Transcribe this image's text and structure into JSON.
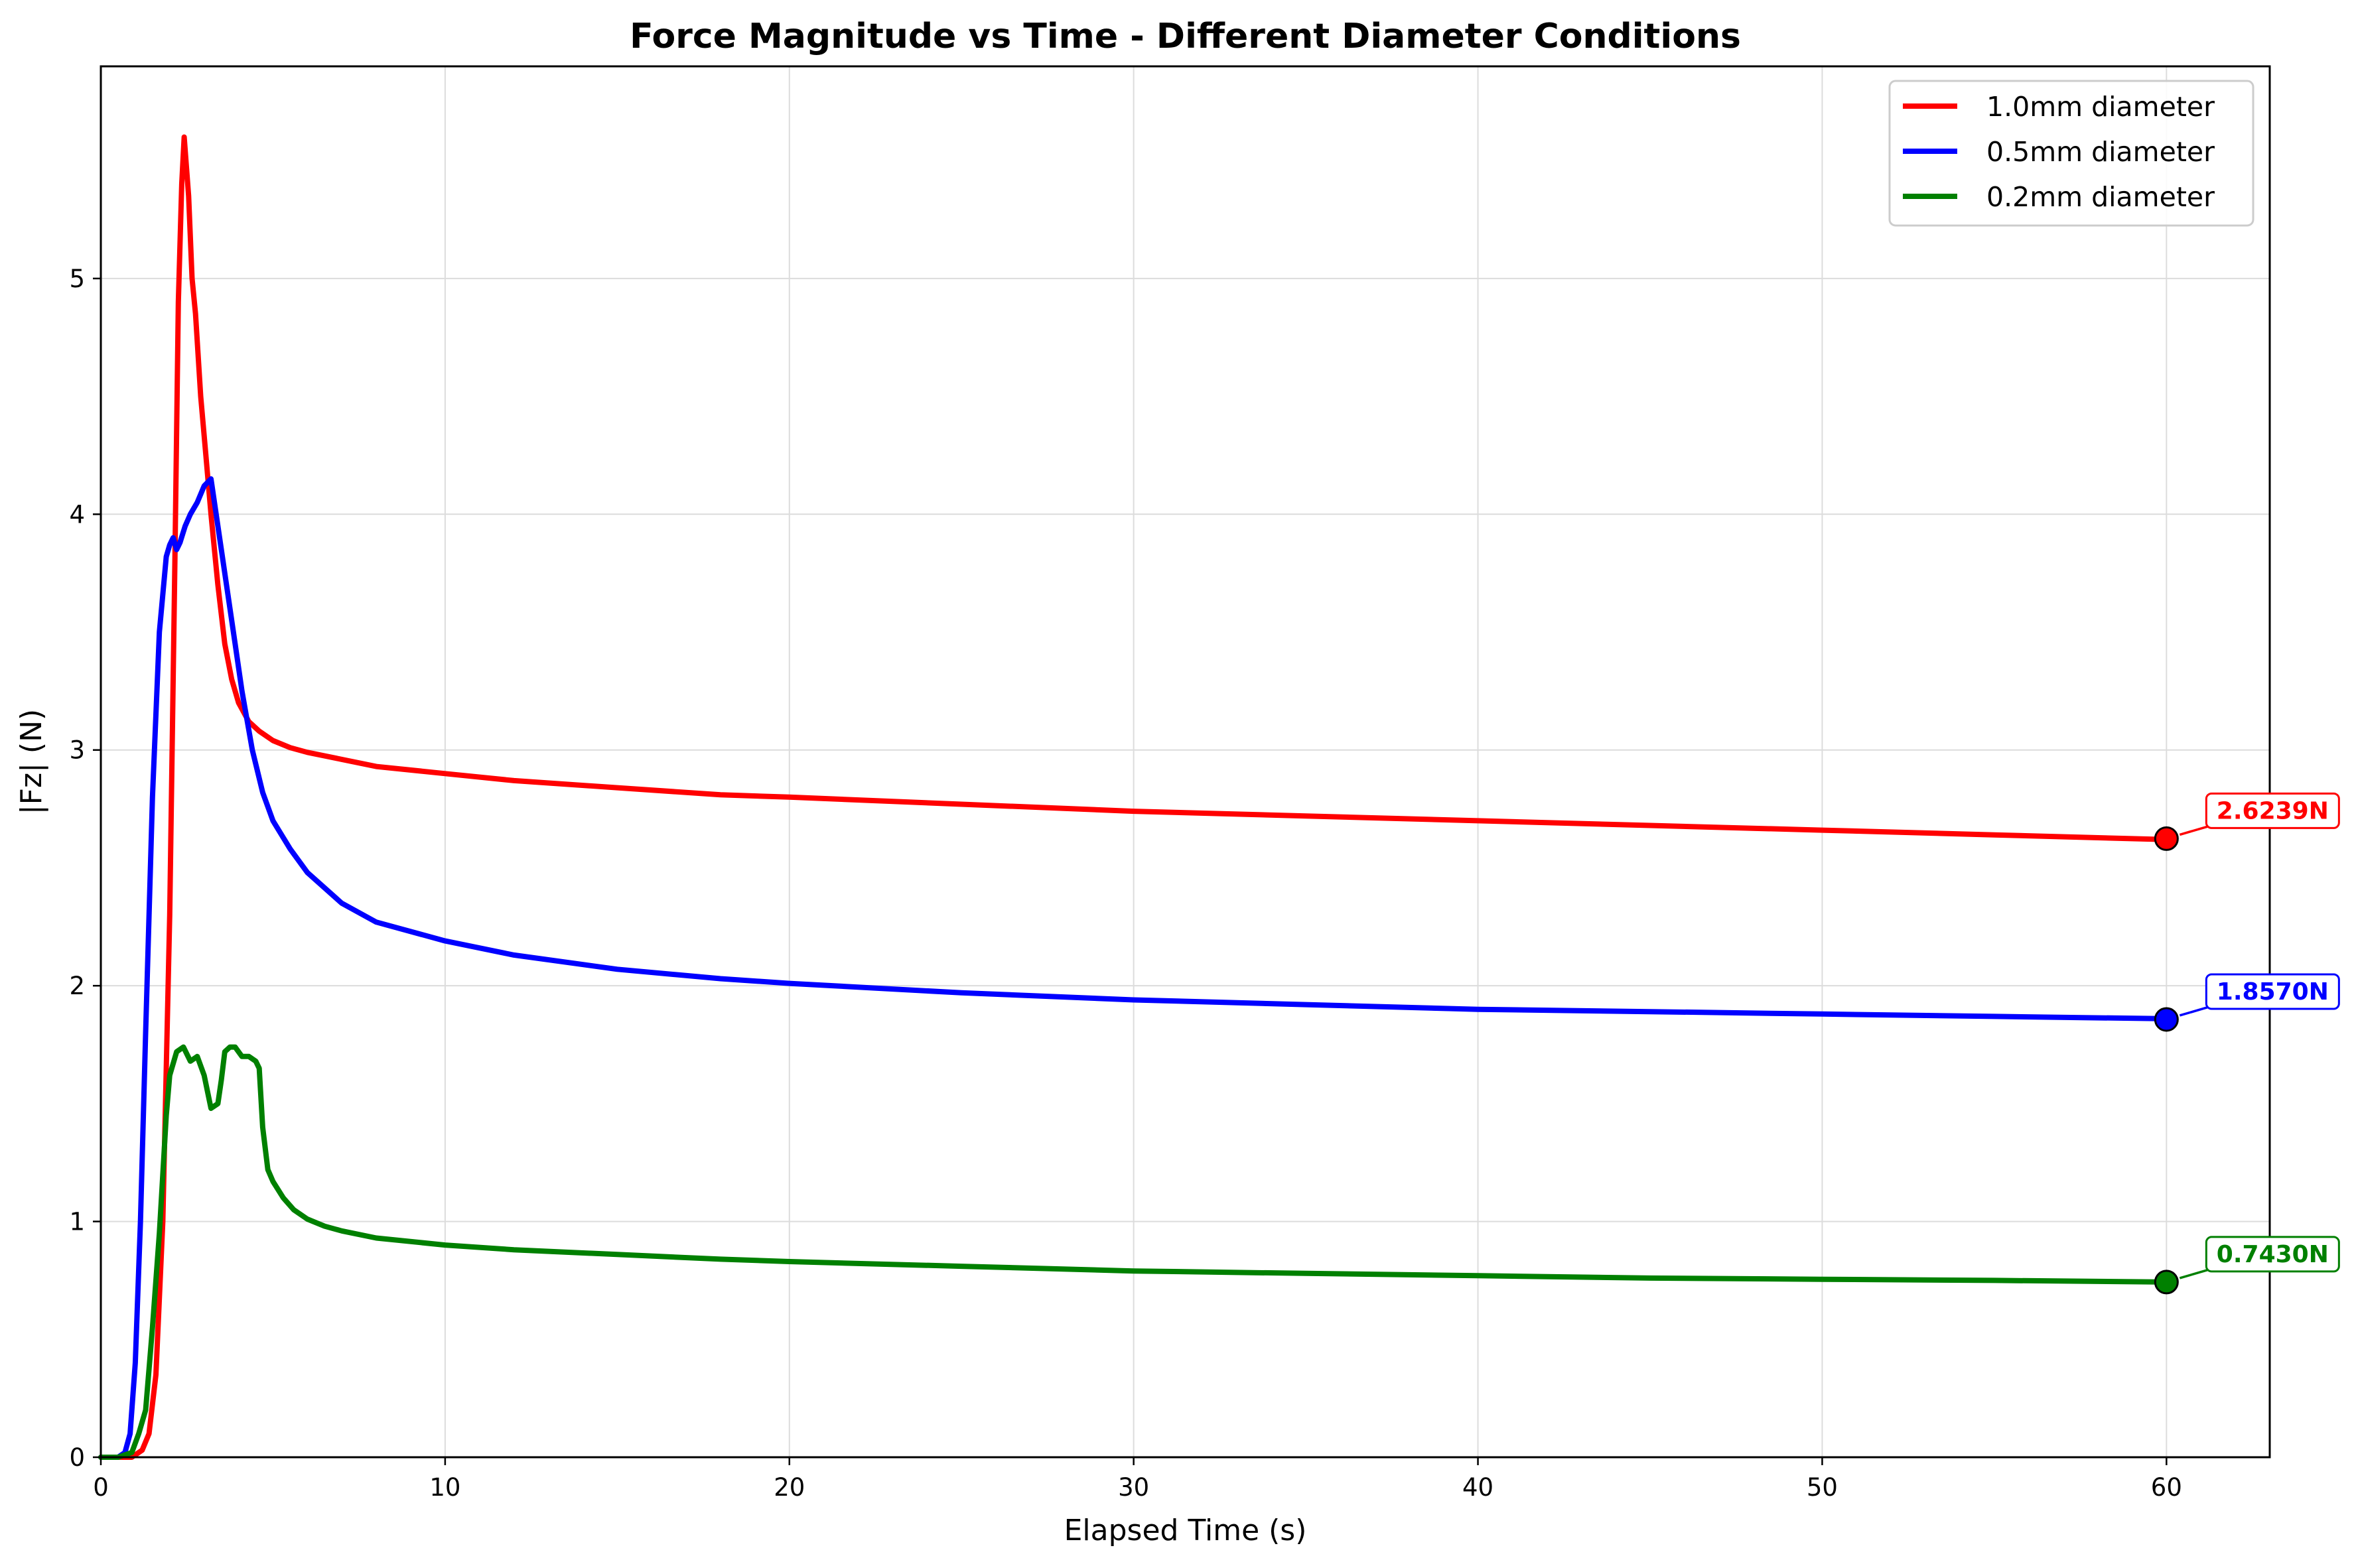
{
  "chart_data": {
    "type": "line",
    "title": "Force Magnitude vs Time - Different Diameter Conditions",
    "xlabel": "Elapsed Time (s)",
    "ylabel": "|Fz| (N)",
    "xlim": [
      0,
      63
    ],
    "ylim": [
      0,
      5.9
    ],
    "xticks": [
      0,
      10,
      20,
      30,
      40,
      50,
      60
    ],
    "yticks": [
      0,
      1,
      2,
      3,
      4,
      5
    ],
    "grid": true,
    "legend_position": "top-right",
    "series": [
      {
        "name": "1.0mm diameter",
        "color": "#ff0000",
        "end_label": "2.6239N",
        "end_value": 2.6239,
        "x": [
          0,
          0.5,
          0.9,
          1.2,
          1.4,
          1.6,
          1.8,
          2.0,
          2.15,
          2.25,
          2.35,
          2.42,
          2.55,
          2.65,
          2.75,
          2.9,
          3.05,
          3.2,
          3.4,
          3.6,
          3.8,
          4.0,
          4.3,
          4.6,
          5.0,
          5.5,
          6.0,
          7.0,
          8.0,
          10.0,
          12.0,
          15.0,
          18.0,
          20.0,
          25.0,
          30.0,
          35.0,
          40.0,
          45.0,
          50.0,
          55.0,
          60.0
        ],
        "y": [
          0.0,
          0.0,
          0.0,
          0.03,
          0.1,
          0.35,
          1.0,
          2.3,
          3.8,
          4.9,
          5.4,
          5.6,
          5.35,
          5.0,
          4.85,
          4.5,
          4.25,
          4.0,
          3.7,
          3.45,
          3.3,
          3.2,
          3.12,
          3.08,
          3.04,
          3.01,
          2.99,
          2.96,
          2.93,
          2.9,
          2.87,
          2.84,
          2.81,
          2.8,
          2.77,
          2.74,
          2.72,
          2.7,
          2.68,
          2.66,
          2.64,
          2.62
        ]
      },
      {
        "name": "0.5mm diameter",
        "color": "#0000ff",
        "end_label": "1.8570N",
        "end_value": 1.857,
        "x": [
          0,
          0.5,
          0.7,
          0.85,
          1.0,
          1.15,
          1.3,
          1.5,
          1.7,
          1.9,
          2.0,
          2.1,
          2.2,
          2.3,
          2.45,
          2.6,
          2.8,
          3.0,
          3.2,
          3.3,
          3.5,
          3.7,
          3.9,
          4.1,
          4.4,
          4.7,
          5.0,
          5.5,
          6.0,
          7.0,
          8.0,
          10.0,
          12.0,
          15.0,
          18.0,
          20.0,
          25.0,
          30.0,
          35.0,
          40.0,
          45.0,
          50.0,
          55.0,
          60.0
        ],
        "y": [
          0.0,
          0.0,
          0.02,
          0.1,
          0.4,
          1.0,
          1.8,
          2.8,
          3.5,
          3.82,
          3.87,
          3.9,
          3.85,
          3.88,
          3.95,
          4.0,
          4.05,
          4.12,
          4.15,
          4.05,
          3.85,
          3.65,
          3.45,
          3.25,
          3.0,
          2.82,
          2.7,
          2.58,
          2.48,
          2.35,
          2.27,
          2.19,
          2.13,
          2.07,
          2.03,
          2.01,
          1.97,
          1.94,
          1.92,
          1.9,
          1.89,
          1.88,
          1.87,
          1.86
        ]
      },
      {
        "name": "0.2mm diameter",
        "color": "#008000",
        "end_label": "0.7430N",
        "end_value": 0.743,
        "x": [
          0,
          0.5,
          0.9,
          1.1,
          1.3,
          1.5,
          1.7,
          1.9,
          2.0,
          2.2,
          2.4,
          2.6,
          2.8,
          3.0,
          3.2,
          3.4,
          3.5,
          3.6,
          3.75,
          3.9,
          4.1,
          4.3,
          4.5,
          4.6,
          4.7,
          4.85,
          5.0,
          5.3,
          5.6,
          6.0,
          6.5,
          7.0,
          8.0,
          10.0,
          12.0,
          15.0,
          18.0,
          20.0,
          25.0,
          30.0,
          35.0,
          40.0,
          45.0,
          50.0,
          55.0,
          60.0
        ],
        "y": [
          0.0,
          0.0,
          0.02,
          0.1,
          0.2,
          0.55,
          0.95,
          1.45,
          1.62,
          1.72,
          1.74,
          1.68,
          1.7,
          1.62,
          1.48,
          1.5,
          1.6,
          1.72,
          1.74,
          1.74,
          1.7,
          1.7,
          1.68,
          1.65,
          1.4,
          1.22,
          1.17,
          1.1,
          1.05,
          1.01,
          0.98,
          0.96,
          0.93,
          0.9,
          0.88,
          0.86,
          0.84,
          0.83,
          0.81,
          0.79,
          0.78,
          0.77,
          0.76,
          0.755,
          0.75,
          0.743
        ]
      }
    ]
  }
}
